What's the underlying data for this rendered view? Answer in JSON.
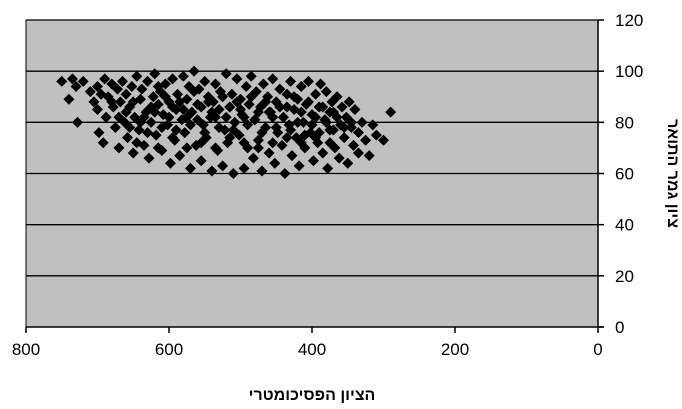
{
  "chart_data": {
    "type": "scatter",
    "title": "",
    "xlabel": "הציון הפסיכומטרי",
    "ylabel": "ציון גמר התואר",
    "x_reversed": true,
    "xlim": [
      0,
      800
    ],
    "ylim": [
      0,
      120
    ],
    "x_ticks": [
      800,
      600,
      400,
      200,
      0
    ],
    "y_ticks": [
      0,
      20,
      40,
      60,
      80,
      100,
      120
    ],
    "y_axis_side": "right",
    "grid": {
      "horizontal": true,
      "vertical": false
    },
    "legend": "none",
    "colors": {
      "plot_background": "#c0c0c0",
      "marker": "#000000",
      "gridline": "#000000"
    },
    "marker": "diamond",
    "points": [
      [
        750,
        96
      ],
      [
        740,
        89
      ],
      [
        735,
        97
      ],
      [
        730,
        94
      ],
      [
        728,
        80
      ],
      [
        720,
        96
      ],
      [
        710,
        92
      ],
      [
        705,
        88
      ],
      [
        700,
        85
      ],
      [
        700,
        94
      ],
      [
        698,
        76
      ],
      [
        695,
        91
      ],
      [
        692,
        72
      ],
      [
        690,
        97
      ],
      [
        688,
        82
      ],
      [
        685,
        90
      ],
      [
        680,
        95
      ],
      [
        678,
        86
      ],
      [
        675,
        78
      ],
      [
        672,
        93
      ],
      [
        670,
        70
      ],
      [
        668,
        88
      ],
      [
        665,
        96
      ],
      [
        662,
        80
      ],
      [
        660,
        91
      ],
      [
        658,
        74
      ],
      [
        655,
        86
      ],
      [
        652,
        94
      ],
      [
        650,
        68
      ],
      [
        648,
        82
      ],
      [
        645,
        98
      ],
      [
        642,
        77
      ],
      [
        640,
        89
      ],
      [
        638,
        93
      ],
      [
        635,
        71
      ],
      [
        632,
        84
      ],
      [
        630,
        96
      ],
      [
        628,
        66
      ],
      [
        625,
        80
      ],
      [
        622,
        90
      ],
      [
        620,
        99
      ],
      [
        618,
        75
      ],
      [
        615,
        87
      ],
      [
        612,
        92
      ],
      [
        610,
        69
      ],
      [
        608,
        83
      ],
      [
        605,
        95
      ],
      [
        602,
        79
      ],
      [
        600,
        88
      ],
      [
        598,
        64
      ],
      [
        595,
        97
      ],
      [
        592,
        73
      ],
      [
        590,
        85
      ],
      [
        588,
        91
      ],
      [
        585,
        67
      ],
      [
        582,
        81
      ],
      [
        580,
        98
      ],
      [
        578,
        76
      ],
      [
        575,
        89
      ],
      [
        572,
        94
      ],
      [
        570,
        62
      ],
      [
        568,
        84
      ],
      [
        565,
        100
      ],
      [
        562,
        71
      ],
      [
        560,
        87
      ],
      [
        558,
        93
      ],
      [
        555,
        65
      ],
      [
        552,
        79
      ],
      [
        550,
        96
      ],
      [
        548,
        74
      ],
      [
        545,
        90
      ],
      [
        542,
        82
      ],
      [
        540,
        61
      ],
      [
        538,
        88
      ],
      [
        535,
        95
      ],
      [
        532,
        69
      ],
      [
        530,
        85
      ],
      [
        528,
        92
      ],
      [
        525,
        63
      ],
      [
        522,
        77
      ],
      [
        520,
        99
      ],
      [
        518,
        72
      ],
      [
        515,
        86
      ],
      [
        512,
        91
      ],
      [
        510,
        60
      ],
      [
        508,
        80
      ],
      [
        505,
        97
      ],
      [
        502,
        75
      ],
      [
        500,
        89
      ],
      [
        498,
        83
      ],
      [
        495,
        62
      ],
      [
        492,
        94
      ],
      [
        490,
        70
      ],
      [
        488,
        87
      ],
      [
        485,
        98
      ],
      [
        482,
        66
      ],
      [
        480,
        81
      ],
      [
        478,
        92
      ],
      [
        475,
        73
      ],
      [
        472,
        86
      ],
      [
        470,
        61
      ],
      [
        468,
        95
      ],
      [
        465,
        78
      ],
      [
        462,
        90
      ],
      [
        460,
        68
      ],
      [
        458,
        84
      ],
      [
        455,
        97
      ],
      [
        452,
        64
      ],
      [
        450,
        88
      ],
      [
        448,
        76
      ],
      [
        445,
        93
      ],
      [
        442,
        71
      ],
      [
        440,
        82
      ],
      [
        438,
        60
      ],
      [
        435,
        91
      ],
      [
        432,
        79
      ],
      [
        430,
        96
      ],
      [
        428,
        67
      ],
      [
        425,
        85
      ],
      [
        422,
        74
      ],
      [
        420,
        89
      ],
      [
        418,
        63
      ],
      [
        415,
        94
      ],
      [
        412,
        80
      ],
      [
        410,
        70
      ],
      [
        408,
        87
      ],
      [
        405,
        96
      ],
      [
        402,
        76
      ],
      [
        400,
        83
      ],
      [
        398,
        65
      ],
      [
        395,
        91
      ],
      [
        392,
        72
      ],
      [
        390,
        86
      ],
      [
        388,
        95
      ],
      [
        385,
        68
      ],
      [
        382,
        81
      ],
      [
        380,
        92
      ],
      [
        378,
        62
      ],
      [
        375,
        77
      ],
      [
        372,
        88
      ],
      [
        370,
        84
      ],
      [
        368,
        70
      ],
      [
        365,
        90
      ],
      [
        362,
        66
      ],
      [
        360,
        79
      ],
      [
        358,
        86
      ],
      [
        355,
        74
      ],
      [
        352,
        82
      ],
      [
        350,
        64
      ],
      [
        348,
        88
      ],
      [
        345,
        78
      ],
      [
        342,
        71
      ],
      [
        340,
        85
      ],
      [
        335,
        68
      ],
      [
        330,
        80
      ],
      [
        325,
        73
      ],
      [
        320,
        67
      ],
      [
        315,
        79
      ],
      [
        310,
        75
      ],
      [
        300,
        73
      ],
      [
        290,
        84
      ],
      [
        640,
        80
      ],
      [
        630,
        76
      ],
      [
        620,
        84
      ],
      [
        610,
        78
      ],
      [
        600,
        82
      ],
      [
        590,
        77
      ],
      [
        580,
        85
      ],
      [
        570,
        79
      ],
      [
        560,
        81
      ],
      [
        550,
        76
      ],
      [
        540,
        84
      ],
      [
        530,
        78
      ],
      [
        520,
        82
      ],
      [
        510,
        77
      ],
      [
        500,
        85
      ],
      [
        490,
        79
      ],
      [
        480,
        81
      ],
      [
        470,
        76
      ],
      [
        460,
        84
      ],
      [
        450,
        78
      ],
      [
        440,
        82
      ],
      [
        430,
        77
      ],
      [
        420,
        80
      ],
      [
        410,
        75
      ],
      [
        400,
        79
      ],
      [
        390,
        76
      ],
      [
        380,
        80
      ],
      [
        370,
        77
      ],
      [
        660,
        84
      ],
      [
        650,
        88
      ],
      [
        645,
        72
      ],
      [
        625,
        86
      ],
      [
        615,
        70
      ],
      [
        605,
        90
      ],
      [
        595,
        74
      ],
      [
        585,
        88
      ],
      [
        575,
        70
      ],
      [
        565,
        92
      ],
      [
        555,
        72
      ],
      [
        545,
        88
      ],
      [
        535,
        70
      ],
      [
        525,
        90
      ],
      [
        515,
        74
      ],
      [
        505,
        88
      ],
      [
        495,
        72
      ],
      [
        485,
        90
      ],
      [
        475,
        70
      ],
      [
        465,
        88
      ],
      [
        455,
        72
      ],
      [
        445,
        86
      ],
      [
        435,
        74
      ],
      [
        425,
        90
      ],
      [
        415,
        72
      ],
      [
        405,
        88
      ],
      [
        395,
        74
      ],
      [
        385,
        86
      ],
      [
        375,
        72
      ],
      [
        365,
        82
      ],
      [
        680,
        88
      ],
      [
        670,
        82
      ],
      [
        655,
        78
      ],
      [
        635,
        82
      ],
      [
        615,
        94
      ],
      [
        595,
        86
      ],
      [
        575,
        82
      ],
      [
        555,
        86
      ],
      [
        535,
        82
      ],
      [
        515,
        86
      ],
      [
        495,
        82
      ],
      [
        475,
        84
      ],
      [
        455,
        82
      ],
      [
        435,
        86
      ],
      [
        415,
        84
      ],
      [
        395,
        82
      ],
      [
        375,
        84
      ],
      [
        355,
        78
      ],
      [
        345,
        80
      ],
      [
        335,
        76
      ]
    ]
  }
}
